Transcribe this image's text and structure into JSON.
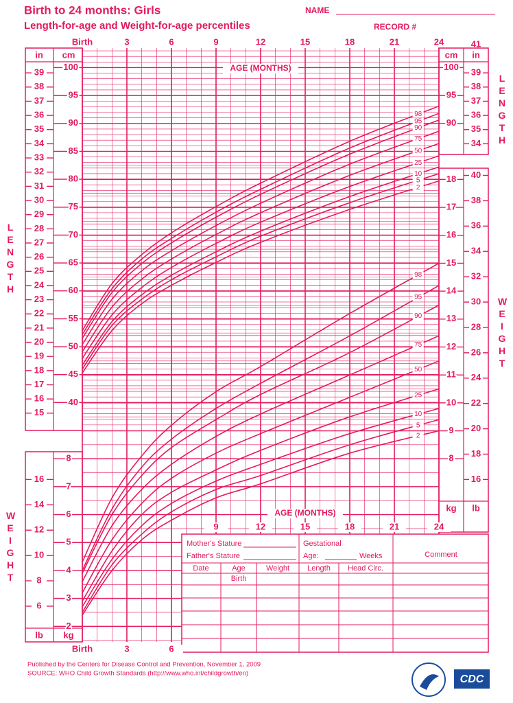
{
  "header": {
    "title": "Birth to 24 months: Girls",
    "subtitle": "Length-for-age and Weight-for-age percentiles",
    "name_label": "NAME",
    "record_label": "RECORD #"
  },
  "chart_data": [
    {
      "type": "line",
      "x_label": "AGE (MONTHS)",
      "y_label": "LENGTH",
      "y_unit": "cm",
      "y2_unit": "in",
      "color": "#e31b5f",
      "x": [
        0,
        2,
        4,
        6,
        9,
        12,
        18,
        24
      ],
      "xlim": [
        0,
        24
      ],
      "xticks": [
        {
          "value": 0,
          "label": "Birth"
        },
        3,
        6,
        9,
        12,
        15,
        18,
        21,
        24
      ],
      "ylim": [
        35,
        103.5
      ],
      "yticks": [
        40,
        45,
        50,
        55,
        60,
        65,
        70,
        75,
        80,
        85,
        90,
        95,
        100
      ],
      "right_yticks": [
        90,
        95,
        100
      ],
      "y2lim": [
        13.78,
        40.75
      ],
      "y2ticks": [
        15,
        16,
        17,
        18,
        19,
        20,
        21,
        22,
        23,
        24,
        25,
        26,
        27,
        28,
        29,
        30,
        31,
        32,
        33,
        34,
        35,
        36,
        37,
        38,
        39
      ],
      "right_y2ticks": [
        34,
        35,
        36,
        37,
        38,
        39,
        41
      ],
      "series": [
        {
          "name": "2",
          "values": [
            45.3,
            52.9,
            57.7,
            61.0,
            65.1,
            68.7,
            74.6,
            79.7
          ]
        },
        {
          "name": "5",
          "values": [
            46.0,
            53.8,
            58.5,
            62.0,
            66.1,
            69.8,
            75.8,
            81.0
          ]
        },
        {
          "name": "10",
          "values": [
            46.7,
            54.5,
            59.3,
            62.8,
            67.0,
            70.7,
            76.9,
            82.2
          ]
        },
        {
          "name": "25",
          "values": [
            47.9,
            55.7,
            60.6,
            64.2,
            68.5,
            72.3,
            78.7,
            84.2
          ]
        },
        {
          "name": "50",
          "values": [
            49.1,
            57.1,
            62.1,
            65.7,
            70.1,
            74.0,
            80.7,
            86.4
          ]
        },
        {
          "name": "75",
          "values": [
            50.4,
            58.5,
            63.6,
            67.2,
            71.7,
            75.7,
            82.7,
            88.6
          ]
        },
        {
          "name": "90",
          "values": [
            51.5,
            59.7,
            64.9,
            68.6,
            73.2,
            77.3,
            84.5,
            90.6
          ]
        },
        {
          "name": "95",
          "values": [
            52.2,
            60.4,
            65.7,
            69.4,
            74.1,
            78.2,
            85.6,
            91.8
          ]
        },
        {
          "name": "98",
          "values": [
            52.9,
            61.3,
            66.5,
            70.4,
            75.1,
            79.3,
            86.8,
            93.1
          ]
        }
      ]
    },
    {
      "type": "line",
      "x_label": "AGE (MONTHS)",
      "y_label": "WEIGHT",
      "y_unit": "kg",
      "y2_unit": "lb",
      "color": "#e31b5f",
      "x": [
        0,
        2,
        4,
        6,
        9,
        12,
        18,
        24
      ],
      "xlim": [
        0,
        24
      ],
      "xticks": [
        {
          "value": 0,
          "label": "Birth"
        },
        3,
        6,
        9,
        12,
        15,
        18,
        21,
        24
      ],
      "ylim": [
        1,
        18.5
      ],
      "yticks": [
        2,
        3,
        4,
        5,
        6,
        7,
        8
      ],
      "right_yticks": [
        8,
        9,
        10,
        11,
        12,
        13,
        14,
        15,
        16,
        17,
        18
      ],
      "y2lim": [
        2.2046,
        40.785
      ],
      "y2ticks": [
        6,
        8,
        10,
        12,
        14,
        16
      ],
      "right_y2ticks": [
        16,
        18,
        20,
        22,
        24,
        26,
        28,
        30,
        32,
        34,
        36,
        38,
        40
      ],
      "series": [
        {
          "name": "2",
          "values": [
            2.4,
            4.0,
            5.1,
            5.8,
            6.6,
            7.1,
            8.2,
            9.0
          ]
        },
        {
          "name": "5",
          "values": [
            2.5,
            4.2,
            5.3,
            6.1,
            6.9,
            7.4,
            8.5,
            9.4
          ]
        },
        {
          "name": "10",
          "values": [
            2.7,
            4.4,
            5.6,
            6.4,
            7.2,
            7.8,
            8.9,
            9.8
          ]
        },
        {
          "name": "25",
          "values": [
            2.9,
            4.7,
            6.0,
            6.8,
            7.6,
            8.3,
            9.5,
            10.5
          ]
        },
        {
          "name": "50",
          "values": [
            3.2,
            5.1,
            6.4,
            7.3,
            8.2,
            8.9,
            10.2,
            11.5
          ]
        },
        {
          "name": "75",
          "values": [
            3.6,
            5.6,
            6.9,
            7.8,
            8.8,
            9.6,
            11.0,
            12.4
          ]
        },
        {
          "name": "90",
          "values": [
            3.9,
            6.0,
            7.4,
            8.4,
            9.4,
            10.3,
            11.8,
            13.5
          ]
        },
        {
          "name": "95",
          "values": [
            4.0,
            6.2,
            7.7,
            8.7,
            9.8,
            10.7,
            12.4,
            14.2
          ]
        },
        {
          "name": "98",
          "values": [
            4.3,
            6.6,
            8.1,
            9.2,
            10.4,
            11.3,
            13.2,
            15.0
          ]
        }
      ]
    }
  ],
  "form": {
    "mother_stature": "Mother's Stature",
    "father_stature": "Father's Stature",
    "gestational": "Gestational",
    "age": "Age:",
    "weeks": "Weeks",
    "comment": "Comment",
    "columns": [
      "Date",
      "Age",
      "Weight",
      "Length",
      "Head Circ."
    ],
    "birth_row": "Birth"
  },
  "footer": {
    "publisher": "Published by the Centers for Disease Control and Prevention, November 1, 2009",
    "source": "SOURCE:  WHO Child Growth Standards (http://www.who.int/childgrowth/en)",
    "logo_text": "CDC"
  }
}
